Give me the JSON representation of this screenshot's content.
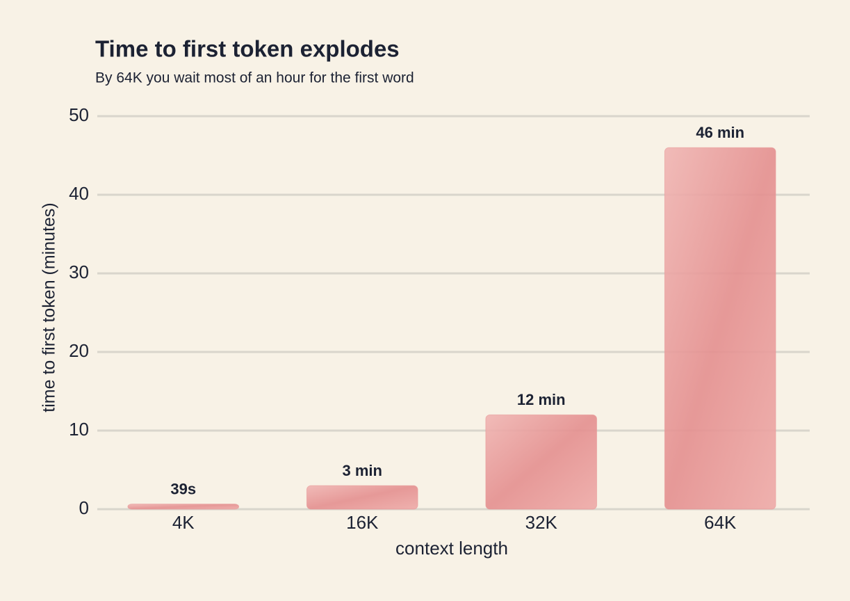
{
  "chart_data": {
    "type": "bar",
    "title": "Time to first token explodes",
    "subtitle": "By 64K you wait most of an hour for the first word",
    "x_label": "context length",
    "y_label": "time to first token (minutes)",
    "categories": [
      "4K",
      "16K",
      "32K",
      "64K"
    ],
    "values": [
      0.65,
      3,
      12,
      46
    ],
    "value_labels": [
      "39s",
      "3 min",
      "12 min",
      "46 min"
    ],
    "color": "#e79a9a",
    "ylim": [
      0,
      50
    ],
    "yticks": [
      0,
      10,
      20,
      30,
      40,
      50
    ],
    "grid": true
  }
}
